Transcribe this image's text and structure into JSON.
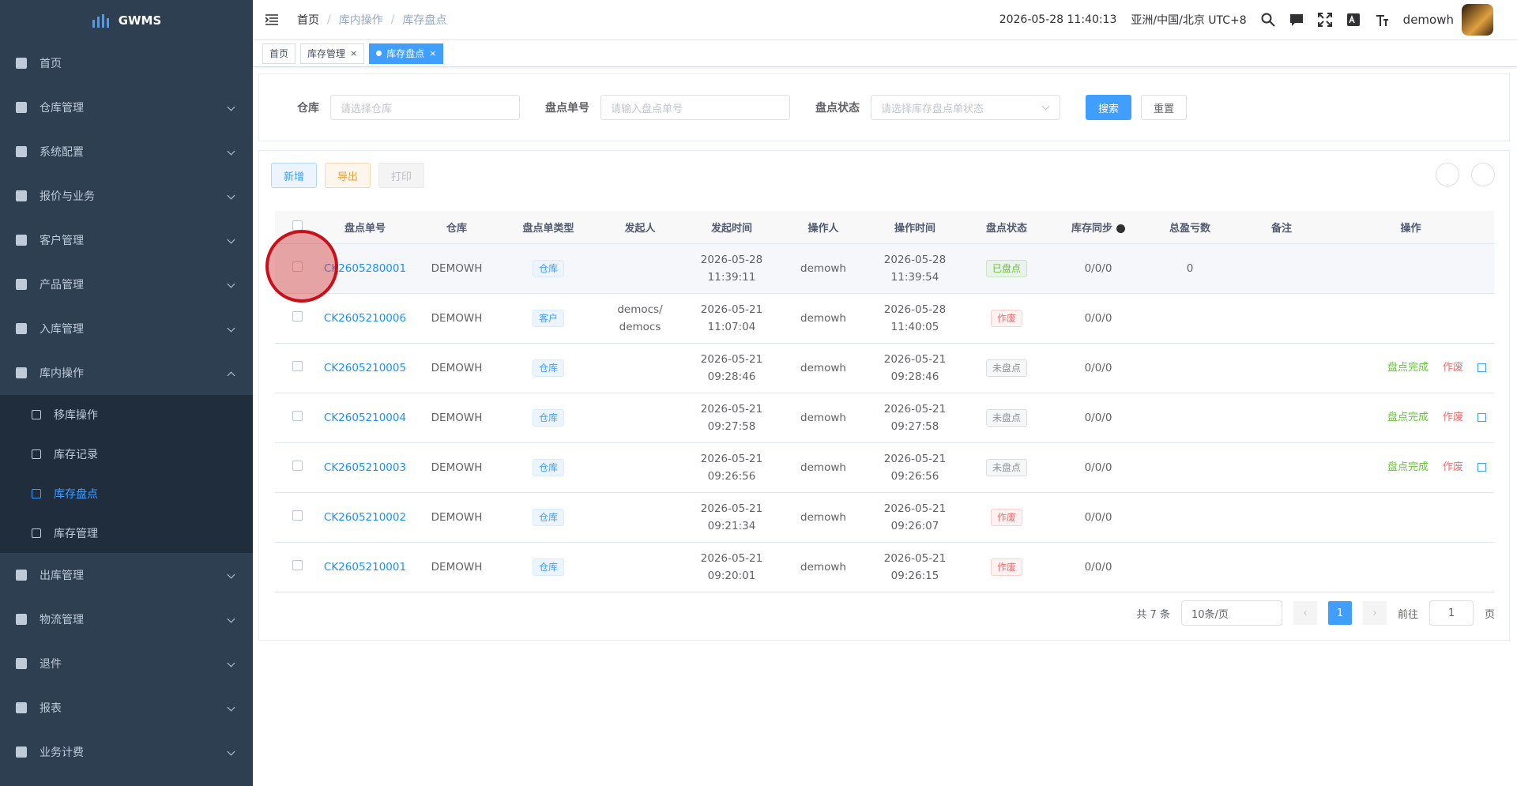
{
  "sidebar": {
    "logo": "GWMS",
    "menu": [
      {
        "label": "首页"
      },
      {
        "label": "仓库管理"
      },
      {
        "label": "系统配置"
      },
      {
        "label": "报价与业务"
      },
      {
        "label": "客户管理"
      },
      {
        "label": "产品管理"
      },
      {
        "label": "入库管理"
      },
      {
        "label": "库内操作",
        "children": [
          {
            "label": "移库操作"
          },
          {
            "label": "库存记录"
          },
          {
            "label": "库存盘点"
          },
          {
            "label": "库存管理"
          }
        ]
      },
      {
        "label": "出库管理"
      },
      {
        "label": "物流管理"
      },
      {
        "label": "退件"
      },
      {
        "label": "报表"
      },
      {
        "label": "业务计费"
      }
    ]
  },
  "header": {
    "breadcrumb": [
      "首页",
      "库内操作",
      "库存盘点"
    ],
    "datetime": "2026-05-28 11:40:13",
    "timezone": "亚洲/中国/北京 UTC+8",
    "user": "demowh"
  },
  "tabs": [
    "首页",
    "库存管理",
    "库存盘点"
  ],
  "search": {
    "fields": [
      {
        "label": "仓库",
        "placeholder": "请选择仓库"
      },
      {
        "label": "盘点单号",
        "placeholder": "请输入盘点单号"
      },
      {
        "label": "盘点状态",
        "placeholder": "请选择库存盘点单状态"
      }
    ],
    "buttons": [
      "搜索",
      "重置"
    ]
  },
  "toolbar": [
    "新增",
    "导出",
    "打印"
  ],
  "table": {
    "columns": [
      "盘点单号",
      "仓库",
      "盘点单类型",
      "发起人",
      "发起时间",
      "操作人",
      "操作时间",
      "盘点状态",
      "库存同步",
      "总盈亏数",
      "备注",
      "操作"
    ],
    "rows": [
      {
        "no": "CK2605280001",
        "warehouse": "DEMOWH",
        "type": "仓库",
        "start_date": "2026-05-28",
        "start_time": "11:39:11",
        "operator": "demowh",
        "op_date": "2026-05-28",
        "op_time": "11:39:54",
        "status": "已盘点",
        "status_color": "#67c23a",
        "sync": "0/0/0",
        "profit_loss": "0"
      },
      {
        "no": "CK2605210006",
        "warehouse": "DEMOWH",
        "type": "客户",
        "initiator": "democs/ democs",
        "start_date": "2026-05-21",
        "start_time": "11:07:04",
        "operator": "demowh",
        "op_date": "2026-05-28",
        "op_time": "11:40:05",
        "status": "作废",
        "status_color": "#f56c6c",
        "sync": "0/0/0"
      },
      {
        "no": "CK2605210005",
        "warehouse": "DEMOWH",
        "type": "仓库",
        "start_date": "2026-05-21",
        "start_time": "09:28:46",
        "operator": "demowh",
        "op_date": "2026-05-21",
        "op_time": "09:28:46",
        "status": "未盘点",
        "status_color": "#909399",
        "sync": "0/0/0",
        "actions": [
          "盘点完成",
          "作废"
        ]
      },
      {
        "no": "CK2605210004",
        "warehouse": "DEMOWH",
        "type": "仓库",
        "start_date": "2026-05-21",
        "start_time": "09:27:58",
        "operator": "demowh",
        "op_date": "2026-05-21",
        "op_time": "09:27:58",
        "status": "未盘点",
        "status_color": "#909399",
        "sync": "0/0/0",
        "actions": [
          "盘点完成",
          "作废"
        ]
      },
      {
        "no": "CK2605210003",
        "warehouse": "DEMOWH",
        "type": "仓库",
        "start_date": "2026-05-21",
        "start_time": "09:26:56",
        "operator": "demowh",
        "op_date": "2026-05-21",
        "op_time": "09:26:56",
        "status": "未盘点",
        "status_color": "#909399",
        "sync": "0/0/0",
        "actions": [
          "盘点完成",
          "作废"
        ]
      },
      {
        "no": "CK2605210002",
        "warehouse": "DEMOWH",
        "type": "仓库",
        "start_date": "2026-05-21",
        "start_time": "09:21:34",
        "operator": "demowh",
        "op_date": "2026-05-21",
        "op_time": "09:26:07",
        "status": "作废",
        "status_color": "#f56c6c",
        "sync": "0/0/0"
      },
      {
        "no": "CK2605210001",
        "warehouse": "DEMOWH",
        "type": "仓库",
        "start_date": "2026-05-21",
        "start_time": "09:20:01",
        "operator": "demowh",
        "op_date": "2026-05-21",
        "op_time": "09:26:15",
        "status": "作废",
        "status_color": "#f56c6c",
        "sync": "0/0/0"
      }
    ]
  },
  "pagination": {
    "total": "共 7 条",
    "page_size": "10条/页",
    "current": "1",
    "goto": "前往",
    "goto_value": "1",
    "page_unit": "页"
  }
}
